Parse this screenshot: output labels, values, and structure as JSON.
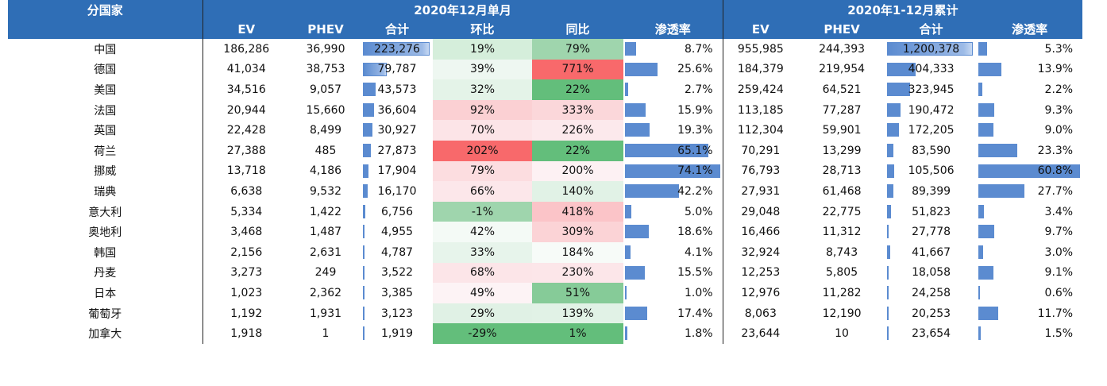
{
  "header": {
    "country": "分国家",
    "group_dec": "2020年12月单月",
    "group_year": "2020年1-12月累计",
    "sub": [
      "EV",
      "PHEV",
      "合计",
      "环比",
      "同比",
      "渗透率",
      "EV",
      "PHEV",
      "合计",
      "渗透率"
    ]
  },
  "colors": {
    "header_bg": "#2f6eb6",
    "bar": "#5b8bd0",
    "red_strong": "#f8696b",
    "green_strong": "#63be7b"
  },
  "rows": [
    {
      "country": "中国",
      "ev": "186,286",
      "phev": "36,990",
      "total": "223,276",
      "mom": "19%",
      "yoy": "79%",
      "pen": "8.7%",
      "ev_y": "955,985",
      "phev_y": "244,393",
      "total_y": "1,200,378",
      "pen_y": "5.3%",
      "total_v": 223276,
      "pen_v": 8.7,
      "total_y_v": 1200378,
      "pen_y_v": 5.3,
      "mom_c": "#d5eedb",
      "yoy_c": "#9fd5ad"
    },
    {
      "country": "德国",
      "ev": "41,034",
      "phev": "38,753",
      "total": "79,787",
      "mom": "39%",
      "yoy": "771%",
      "pen": "25.6%",
      "ev_y": "184,379",
      "phev_y": "219,954",
      "total_y": "404,333",
      "pen_y": "13.9%",
      "total_v": 79787,
      "pen_v": 25.6,
      "total_y_v": 404333,
      "pen_y_v": 13.9,
      "mom_c": "#eef7f1",
      "yoy_c": "#f8696b"
    },
    {
      "country": "美国",
      "ev": "34,516",
      "phev": "9,057",
      "total": "43,573",
      "mom": "32%",
      "yoy": "22%",
      "pen": "2.7%",
      "ev_y": "259,424",
      "phev_y": "64,521",
      "total_y": "323,945",
      "pen_y": "2.2%",
      "total_v": 43573,
      "pen_v": 2.7,
      "total_y_v": 323945,
      "pen_y_v": 2.2,
      "mom_c": "#e4f3e8",
      "yoy_c": "#63be7b"
    },
    {
      "country": "法国",
      "ev": "20,944",
      "phev": "15,660",
      "total": "36,604",
      "mom": "92%",
      "yoy": "333%",
      "pen": "15.9%",
      "ev_y": "113,185",
      "phev_y": "77,287",
      "total_y": "190,472",
      "pen_y": "9.3%",
      "total_v": 36604,
      "pen_v": 15.9,
      "total_y_v": 190472,
      "pen_y_v": 9.3,
      "mom_c": "#fbd0d3",
      "yoy_c": "#fbd7da"
    },
    {
      "country": "英国",
      "ev": "22,428",
      "phev": "8,499",
      "total": "30,927",
      "mom": "70%",
      "yoy": "226%",
      "pen": "19.3%",
      "ev_y": "112,304",
      "phev_y": "59,901",
      "total_y": "172,205",
      "pen_y": "9.0%",
      "total_v": 30927,
      "pen_v": 19.3,
      "total_y_v": 172205,
      "pen_y_v": 9.0,
      "mom_c": "#fce4e7",
      "yoy_c": "#fce9ec"
    },
    {
      "country": "荷兰",
      "ev": "27,388",
      "phev": "485",
      "total": "27,873",
      "mom": "202%",
      "yoy": "22%",
      "pen": "65.1%",
      "ev_y": "70,291",
      "phev_y": "13,299",
      "total_y": "83,590",
      "pen_y": "23.3%",
      "total_v": 27873,
      "pen_v": 65.1,
      "total_y_v": 83590,
      "pen_y_v": 23.3,
      "mom_c": "#f8696b",
      "yoy_c": "#63be7b"
    },
    {
      "country": "挪威",
      "ev": "13,718",
      "phev": "4,186",
      "total": "17,904",
      "mom": "79%",
      "yoy": "200%",
      "pen": "74.1%",
      "ev_y": "76,793",
      "phev_y": "28,713",
      "total_y": "105,506",
      "pen_y": "60.8%",
      "total_v": 17904,
      "pen_v": 74.1,
      "total_y_v": 105506,
      "pen_y_v": 60.8,
      "mom_c": "#fcdde0",
      "yoy_c": "#fdf1f3"
    },
    {
      "country": "瑞典",
      "ev": "6,638",
      "phev": "9,532",
      "total": "16,170",
      "mom": "66%",
      "yoy": "140%",
      "pen": "42.2%",
      "ev_y": "27,931",
      "phev_y": "61,468",
      "total_y": "89,399",
      "pen_y": "27.7%",
      "total_v": 16170,
      "pen_v": 42.2,
      "total_y_v": 89399,
      "pen_y_v": 27.7,
      "mom_c": "#fce7ea",
      "yoy_c": "#e1f2e6"
    },
    {
      "country": "意大利",
      "ev": "5,334",
      "phev": "1,422",
      "total": "6,756",
      "mom": "-1%",
      "yoy": "418%",
      "pen": "5.0%",
      "ev_y": "29,048",
      "phev_y": "22,775",
      "total_y": "51,823",
      "pen_y": "3.4%",
      "total_v": 6756,
      "pen_v": 5.0,
      "total_y_v": 51823,
      "pen_y_v": 3.4,
      "mom_c": "#9fd5ad",
      "yoy_c": "#fbc4c8"
    },
    {
      "country": "奥地利",
      "ev": "3,468",
      "phev": "1,487",
      "total": "4,955",
      "mom": "42%",
      "yoy": "309%",
      "pen": "18.6%",
      "ev_y": "16,466",
      "phev_y": "11,312",
      "total_y": "27,778",
      "pen_y": "9.7%",
      "total_v": 4955,
      "pen_v": 18.6,
      "total_y_v": 27778,
      "pen_y_v": 9.7,
      "mom_c": "#f4faf6",
      "yoy_c": "#fbd3d6"
    },
    {
      "country": "韩国",
      "ev": "2,156",
      "phev": "2,631",
      "total": "4,787",
      "mom": "33%",
      "yoy": "184%",
      "pen": "4.1%",
      "ev_y": "32,924",
      "phev_y": "8,743",
      "total_y": "41,667",
      "pen_y": "3.0%",
      "total_v": 4787,
      "pen_v": 4.1,
      "total_y_v": 41667,
      "pen_y_v": 3.0,
      "mom_c": "#e7f4eb",
      "yoy_c": "#f7fbf8"
    },
    {
      "country": "丹麦",
      "ev": "3,273",
      "phev": "249",
      "total": "3,522",
      "mom": "68%",
      "yoy": "230%",
      "pen": "15.5%",
      "ev_y": "12,253",
      "phev_y": "5,805",
      "total_y": "18,058",
      "pen_y": "9.1%",
      "total_v": 3522,
      "pen_v": 15.5,
      "total_y_v": 18058,
      "pen_y_v": 9.1,
      "mom_c": "#fce5e8",
      "yoy_c": "#fce6e9"
    },
    {
      "country": "日本",
      "ev": "1,023",
      "phev": "2,362",
      "total": "3,385",
      "mom": "49%",
      "yoy": "51%",
      "pen": "1.0%",
      "ev_y": "12,976",
      "phev_y": "11,282",
      "total_y": "24,258",
      "pen_y": "0.6%",
      "total_v": 3385,
      "pen_v": 1.0,
      "total_y_v": 24258,
      "pen_y_v": 0.6,
      "mom_c": "#fdf3f5",
      "yoy_c": "#86cb98"
    },
    {
      "country": "葡萄牙",
      "ev": "1,192",
      "phev": "1,931",
      "total": "3,123",
      "mom": "29%",
      "yoy": "139%",
      "pen": "17.4%",
      "ev_y": "8,063",
      "phev_y": "12,190",
      "total_y": "20,253",
      "pen_y": "11.7%",
      "total_v": 3123,
      "pen_v": 17.4,
      "total_y_v": 20253,
      "pen_y_v": 11.7,
      "mom_c": "#e0f1e5",
      "yoy_c": "#e1f2e6"
    },
    {
      "country": "加拿大",
      "ev": "1,918",
      "phev": "1",
      "total": "1,919",
      "mom": "-29%",
      "yoy": "1%",
      "pen": "1.8%",
      "ev_y": "23,644",
      "phev_y": "10",
      "total_y": "23,654",
      "pen_y": "1.5%",
      "total_v": 1919,
      "pen_v": 1.8,
      "total_y_v": 23654,
      "pen_y_v": 1.5,
      "mom_c": "#63be7b",
      "yoy_c": "#63be7b"
    }
  ]
}
